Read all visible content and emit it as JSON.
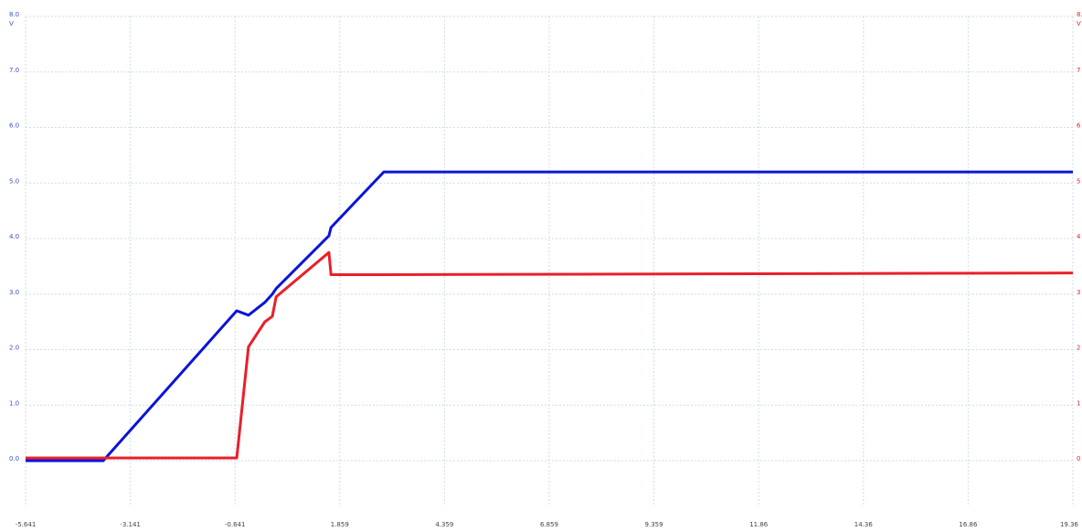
{
  "chart_data": {
    "type": "line",
    "y_unit": "V",
    "y2_unit": "V",
    "x": [
      -5.641,
      -3.787,
      -0.6,
      -0.32,
      0.07,
      0.25,
      0.34,
      1.6,
      1.65,
      2.91,
      19.36
    ],
    "series": [
      {
        "color": "#0a14d8",
        "values": [
          0,
          0,
          2.7,
          2.62,
          2.85,
          3.0,
          3.1,
          4.05,
          4.2,
          5.2,
          5.2
        ]
      },
      {
        "color": "#e8202a",
        "axis": "y2",
        "values": [
          0.05,
          0.05,
          0.05,
          2.05,
          2.5,
          2.6,
          2.95,
          3.75,
          3.35,
          3.35,
          3.38
        ]
      }
    ],
    "xlim": [
      -5.641,
      19.36
    ],
    "xticks": [
      -5.641,
      -3.141,
      -0.641,
      1.859,
      4.359,
      6.859,
      9.359,
      11.86,
      14.36,
      16.86,
      19.36
    ],
    "ylim": [
      0,
      8
    ],
    "yticks": [
      {
        "value": 0,
        "label": "0.0"
      },
      {
        "value": 1,
        "label": "1.0"
      },
      {
        "value": 2,
        "label": "2.0"
      },
      {
        "value": 3,
        "label": "3.0"
      },
      {
        "value": 4,
        "label": "4.0"
      },
      {
        "value": 5,
        "label": "5.0"
      },
      {
        "value": 6,
        "label": "6.0"
      },
      {
        "value": 7,
        "label": "7.0"
      },
      {
        "value": 8,
        "label": "8.0"
      }
    ],
    "y2lim": [
      0,
      8
    ],
    "y2ticks": [
      0,
      1,
      2,
      3,
      4,
      5,
      6,
      7,
      {
        "value": 8,
        "label": "8."
      }
    ],
    "grid": true
  }
}
